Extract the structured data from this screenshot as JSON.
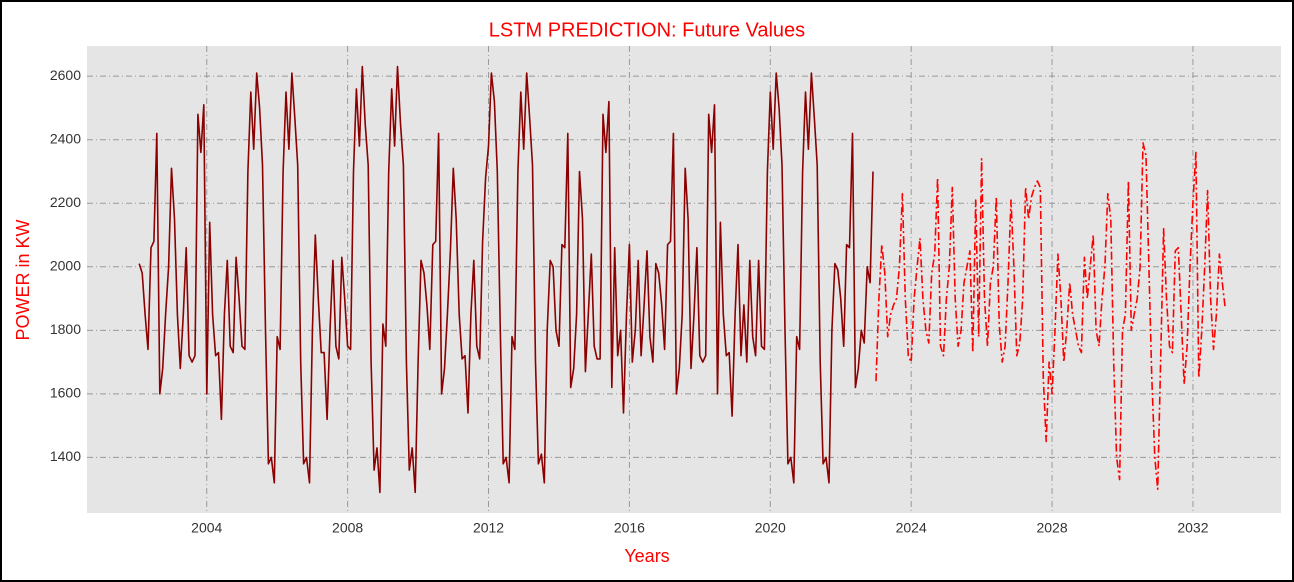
{
  "chart_data": {
    "type": "line",
    "title": "LSTM PREDICTION: Future Values",
    "xlabel": "Years",
    "ylabel": "POWER in KW",
    "xlim": [
      2000.6,
      2034.5
    ],
    "ylim": [
      1225,
      2695
    ],
    "xticks": [
      2004,
      2008,
      2012,
      2016,
      2020,
      2024,
      2028,
      2032
    ],
    "yticks": [
      1400,
      1600,
      1800,
      2000,
      2200,
      2400,
      2600
    ],
    "grid": true,
    "series": [
      {
        "color": "#8b0000",
        "style": "solid",
        "x": [
          2002.083,
          2002.167,
          2002.25,
          2002.333,
          2002.417,
          2002.5,
          2002.583,
          2002.667,
          2002.75,
          2002.833,
          2002.917,
          2003,
          2003.083,
          2003.167,
          2003.25,
          2003.333,
          2003.417,
          2003.5,
          2003.583,
          2003.667,
          2003.75,
          2003.833,
          2003.917,
          2004,
          2004.083,
          2004.167,
          2004.25,
          2004.333,
          2004.417,
          2004.5,
          2004.583,
          2004.667,
          2004.75,
          2004.833,
          2004.917,
          2005,
          2005.083,
          2005.167,
          2005.25,
          2005.333,
          2005.417,
          2005.5,
          2005.583,
          2005.667,
          2005.75,
          2005.833,
          2005.917,
          2006,
          2006.083,
          2006.167,
          2006.25,
          2006.333,
          2006.417,
          2006.5,
          2006.583,
          2006.667,
          2006.75,
          2006.833,
          2006.917,
          2007,
          2007.083,
          2007.167,
          2007.25,
          2007.333,
          2007.417,
          2007.5,
          2007.583,
          2007.667,
          2007.75,
          2007.833,
          2007.917,
          2008,
          2008.083,
          2008.167,
          2008.25,
          2008.333,
          2008.417,
          2008.5,
          2008.583,
          2008.667,
          2008.75,
          2008.833,
          2008.917,
          2009,
          2009.083,
          2009.167,
          2009.25,
          2009.333,
          2009.417,
          2009.5,
          2009.583,
          2009.667,
          2009.75,
          2009.833,
          2009.917,
          2010,
          2010.083,
          2010.167,
          2010.25,
          2010.333,
          2010.417,
          2010.5,
          2010.583,
          2010.667,
          2010.75,
          2010.833,
          2010.917,
          2011,
          2011.083,
          2011.167,
          2011.25,
          2011.333,
          2011.417,
          2011.5,
          2011.583,
          2011.667,
          2011.75,
          2011.833,
          2011.917,
          2012,
          2012.083,
          2012.167,
          2012.25,
          2012.333,
          2012.417,
          2012.5,
          2012.583,
          2012.667,
          2012.75,
          2012.833,
          2012.917,
          2013,
          2013.083,
          2013.167,
          2013.25,
          2013.333,
          2013.417,
          2013.5,
          2013.583,
          2013.667,
          2013.75,
          2013.833,
          2013.917,
          2014,
          2014.083,
          2014.167,
          2014.25,
          2014.333,
          2014.417,
          2014.5,
          2014.583,
          2014.667,
          2014.75,
          2014.833,
          2014.917,
          2015,
          2015.083,
          2015.167,
          2015.25,
          2015.333,
          2015.417,
          2015.5,
          2015.583,
          2015.667,
          2015.75,
          2015.833,
          2015.917,
          2016,
          2016.083,
          2016.167,
          2016.25,
          2016.333,
          2016.417,
          2016.5,
          2016.583,
          2016.667,
          2016.75,
          2016.833,
          2016.917,
          2017,
          2017.083,
          2017.167,
          2017.25,
          2017.333,
          2017.417,
          2017.5,
          2017.583,
          2017.667,
          2017.75,
          2017.833,
          2017.917,
          2018,
          2018.083,
          2018.167,
          2018.25,
          2018.333,
          2018.417,
          2018.5,
          2018.583,
          2018.667,
          2018.75,
          2018.833,
          2018.917,
          2019,
          2019.083,
          2019.167,
          2019.25,
          2019.333,
          2019.417,
          2019.5,
          2019.583,
          2019.667,
          2019.75,
          2019.833,
          2019.917,
          2020,
          2020.083,
          2020.167,
          2020.25,
          2020.333,
          2020.417,
          2020.5,
          2020.583,
          2020.667,
          2020.75,
          2020.833,
          2020.917,
          2021,
          2021.083,
          2021.167,
          2021.25,
          2021.333,
          2021.417,
          2021.5,
          2021.583,
          2021.667,
          2021.75,
          2021.833,
          2021.917,
          2022,
          2022.083,
          2022.167,
          2022.25,
          2022.333,
          2022.417,
          2022.5,
          2022.583,
          2022.667,
          2022.75,
          2022.833,
          2022.917
        ],
        "values": [
          2010,
          1980,
          1850,
          1740,
          2060,
          2080,
          2420,
          1600,
          1680,
          1850,
          2000,
          2310,
          2150,
          1850,
          1680,
          1850,
          2060,
          1720,
          1700,
          1720,
          2480,
          2360,
          2510,
          1600,
          2140,
          1850,
          1720,
          1730,
          1520,
          1850,
          2020,
          1750,
          1730,
          2030,
          1900,
          1750,
          1740,
          2300,
          2550,
          2370,
          2610,
          2500,
          2320,
          1800,
          1380,
          1400,
          1320,
          1780,
          1740,
          2300,
          2550,
          2370,
          2610,
          2470,
          2320,
          1700,
          1380,
          1400,
          1320,
          1800,
          2100,
          1900,
          1730,
          1730,
          1520,
          1800,
          2020,
          1750,
          1710,
          2030,
          1900,
          1750,
          1740,
          2300,
          2560,
          2380,
          2630,
          2450,
          2320,
          1700,
          1360,
          1430,
          1290,
          1820,
          1750,
          2300,
          2560,
          2380,
          2630,
          2450,
          2320,
          1700,
          1360,
          1430,
          1290,
          1700,
          2020,
          1980,
          1880,
          1740,
          2070,
          2080,
          2420,
          1600,
          1680,
          1850,
          2050,
          2310,
          2150,
          1850,
          1710,
          1720,
          1540,
          1850,
          2020,
          1750,
          1710,
          2080,
          2280,
          2380,
          2610,
          2520,
          2300,
          1800,
          1380,
          1400,
          1320,
          1780,
          1740,
          2300,
          2550,
          2370,
          2610,
          2470,
          2320,
          1700,
          1380,
          1410,
          1320,
          1800,
          2020,
          2000,
          1800,
          1750,
          2070,
          2060,
          2420,
          1620,
          1680,
          1850,
          2300,
          2150,
          1670,
          1850,
          2040,
          1750,
          1710,
          1710,
          2480,
          2360,
          2520,
          1620,
          2060,
          1720,
          1800,
          1540,
          1850,
          2070,
          1700,
          1800,
          2020,
          1720,
          1880,
          2050,
          1780,
          1700,
          2010,
          1980,
          1880,
          1740,
          2070,
          2080,
          2420,
          1600,
          1680,
          1850,
          2310,
          2150,
          1680,
          1850,
          2060,
          1720,
          1700,
          1720,
          2480,
          2360,
          2510,
          1600,
          2140,
          1850,
          1720,
          1730,
          1530,
          1850,
          2070,
          1720,
          1880,
          1700,
          2020,
          1780,
          1720,
          2020,
          1750,
          1740,
          2300,
          2550,
          2370,
          2610,
          2500,
          2320,
          1800,
          1380,
          1400,
          1320,
          1780,
          1740,
          2300,
          2550,
          2370,
          2610,
          2470,
          2320,
          1700,
          1380,
          1400,
          1320,
          1800,
          2010,
          1990,
          1900,
          1750,
          2070,
          2060,
          2420,
          1620,
          1680,
          1800,
          1760,
          2000,
          1950,
          2300
        ]
      },
      {
        "color": "#ff0000",
        "style": "dashdot",
        "x": [
          2023,
          2023.083,
          2023.167,
          2023.25,
          2023.333,
          2023.417,
          2023.5,
          2023.583,
          2023.667,
          2023.75,
          2023.833,
          2023.917,
          2024,
          2024.083,
          2024.167,
          2024.25,
          2024.333,
          2024.417,
          2024.5,
          2024.583,
          2024.667,
          2024.75,
          2024.833,
          2024.917,
          2025,
          2025.083,
          2025.167,
          2025.25,
          2025.333,
          2025.417,
          2025.5,
          2025.583,
          2025.667,
          2025.75,
          2025.833,
          2025.917,
          2026,
          2026.083,
          2026.167,
          2026.25,
          2026.333,
          2026.417,
          2026.5,
          2026.583,
          2026.667,
          2026.75,
          2026.833,
          2026.917,
          2027,
          2027.083,
          2027.167,
          2027.25,
          2027.333,
          2027.417,
          2027.5,
          2027.583,
          2027.667,
          2027.75,
          2027.833,
          2027.917,
          2028,
          2028.083,
          2028.167,
          2028.25,
          2028.333,
          2028.417,
          2028.5,
          2028.583,
          2028.667,
          2028.75,
          2028.833,
          2028.917,
          2029,
          2029.083,
          2029.167,
          2029.25,
          2029.333,
          2029.417,
          2029.5,
          2029.583,
          2029.667,
          2029.75,
          2029.833,
          2029.917,
          2030,
          2030.083,
          2030.167,
          2030.25,
          2030.333,
          2030.417,
          2030.5,
          2030.583,
          2030.667,
          2030.75,
          2030.833,
          2030.917,
          2031,
          2031.083,
          2031.167,
          2031.25,
          2031.333,
          2031.417,
          2031.5,
          2031.583,
          2031.667,
          2031.75,
          2031.833,
          2031.917,
          2032,
          2032.083,
          2032.167,
          2032.25,
          2032.333,
          2032.417,
          2032.5,
          2032.583,
          2032.667,
          2032.75,
          2032.833,
          2032.917
        ],
        "values": [
          1640,
          1900,
          2070,
          1980,
          1780,
          1850,
          1880,
          1900,
          2000,
          2230,
          1900,
          1720,
          1700,
          1900,
          2000,
          2090,
          1900,
          1800,
          1760,
          1980,
          2040,
          2280,
          1750,
          1720,
          1900,
          2000,
          2250,
          1900,
          1750,
          1800,
          1950,
          2000,
          2050,
          1730,
          2210,
          1780,
          2340,
          1900,
          1750,
          1950,
          2000,
          2220,
          1820,
          1700,
          1750,
          1950,
          2210,
          2000,
          1720,
          1760,
          1900,
          2250,
          2150,
          2220,
          2250,
          2270,
          2250,
          1650,
          1450,
          1700,
          1600,
          1800,
          2040,
          1900,
          1700,
          1800,
          1950,
          1850,
          1800,
          1750,
          1730,
          2030,
          1900,
          2000,
          2100,
          1800,
          1750,
          1900,
          2000,
          2230,
          2150,
          1700,
          1400,
          1330,
          1800,
          1850,
          2270,
          1800,
          1850,
          1900,
          2000,
          2390,
          2350,
          2000,
          1650,
          1400,
          1300,
          1700,
          2120,
          1900,
          1750,
          1730,
          2050,
          2060,
          1850,
          1630,
          1750,
          2000,
          2200,
          2360,
          1650,
          1800,
          2000,
          2240,
          1900,
          1740,
          1850,
          2040,
          1950,
          1870
        ]
      }
    ]
  }
}
